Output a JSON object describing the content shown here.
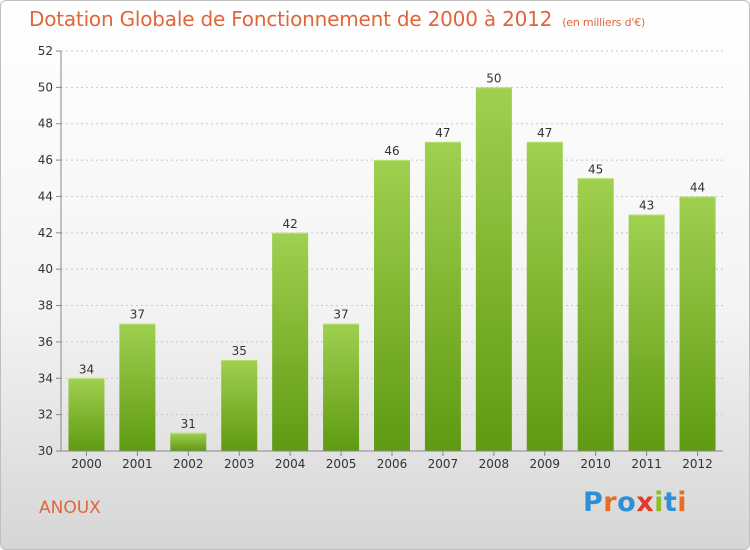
{
  "header": {
    "title": "Dotation Globale de Fonctionnement de 2000 à 2012",
    "subtitle": "(en milliers d'€)"
  },
  "footer": {
    "commune": "ANOUX",
    "logo_text": "Proxiti",
    "logo_colors": [
      "#2f8fd6",
      "#e86d1f",
      "#2f8fd6",
      "#e33b2b",
      "#8cbf26",
      "#2f8fd6",
      "#e86d1f"
    ]
  },
  "colors": {
    "bar_top": "#a0d050",
    "bar_bottom": "#5f9a12",
    "title": "#e0663a"
  },
  "chart_data": {
    "type": "bar",
    "categories": [
      "2000",
      "2001",
      "2002",
      "2003",
      "2004",
      "2005",
      "2006",
      "2007",
      "2008",
      "2009",
      "2010",
      "2011",
      "2012"
    ],
    "values": [
      34,
      37,
      31,
      35,
      42,
      37,
      46,
      47,
      50,
      47,
      45,
      43,
      44
    ],
    "ylim": [
      30,
      52
    ],
    "yticks": [
      30,
      32,
      34,
      36,
      38,
      40,
      42,
      44,
      46,
      48,
      50,
      52
    ],
    "grid": true,
    "title": "Dotation Globale de Fonctionnement de 2000 à 2012",
    "subtitle": "(en milliers d'€)"
  }
}
